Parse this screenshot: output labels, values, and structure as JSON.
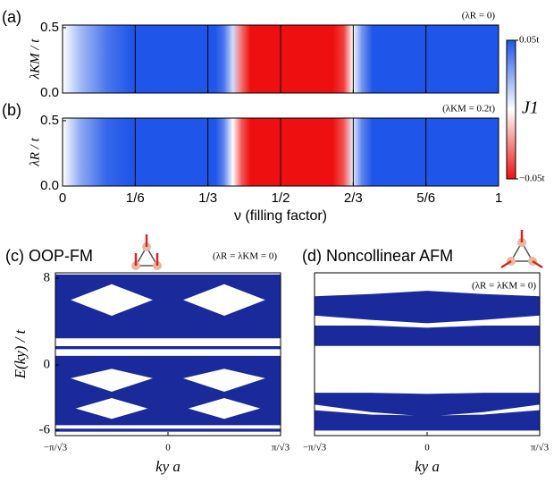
{
  "chart_data": [
    {
      "type": "heatmap",
      "panel": "(a)",
      "annotation": "(λR = 0)",
      "ylabel": "λKM / t",
      "x": [
        0,
        0.04,
        0.1,
        0.16,
        0.3,
        0.35,
        0.37,
        0.39,
        0.41,
        0.43,
        0.5,
        0.62,
        0.645,
        0.665,
        0.685,
        0.71,
        0.8,
        1
      ],
      "values": [
        0,
        0.02,
        0.04,
        0.05,
        0.05,
        0.05,
        0.04,
        0.01,
        -0.03,
        -0.05,
        -0.05,
        -0.05,
        -0.04,
        0,
        0.03,
        0.05,
        0.05,
        0.05
      ],
      "xlim": [
        0,
        1
      ],
      "xticks": [
        0,
        {
          "value": 0.16667,
          "label": "1/6"
        },
        {
          "value": 0.33333,
          "label": "1/3"
        },
        {
          "value": 0.5,
          "label": "1/2"
        },
        {
          "value": 0.66667,
          "label": "2/3"
        },
        {
          "value": 0.83333,
          "label": "5/6"
        },
        1
      ],
      "ylim": [
        0,
        0.52
      ],
      "yticks": [
        {
          "value": 0,
          "label": "0.0"
        },
        0.5
      ],
      "grid": true
    },
    {
      "type": "heatmap",
      "panel": "(b)",
      "annotation": "(λKM = 0.2t)",
      "ylabel": "λR / t",
      "xlabel": "ν (filling factor)",
      "x": [
        0,
        0.04,
        0.1,
        0.16,
        0.3,
        0.35,
        0.37,
        0.39,
        0.41,
        0.43,
        0.5,
        0.62,
        0.645,
        0.665,
        0.685,
        0.71,
        0.8,
        1
      ],
      "values": [
        0,
        0.025,
        0.045,
        0.05,
        0.05,
        0.05,
        0.035,
        0,
        -0.035,
        -0.05,
        -0.05,
        -0.05,
        -0.035,
        0.005,
        0.035,
        0.05,
        0.05,
        0.05
      ],
      "xlim": [
        0,
        1
      ],
      "xticks": [
        0,
        {
          "value": 0.16667,
          "label": "1/6"
        },
        {
          "value": 0.33333,
          "label": "1/3"
        },
        {
          "value": 0.5,
          "label": "1/2"
        },
        {
          "value": 0.66667,
          "label": "2/3"
        },
        {
          "value": 0.83333,
          "label": "5/6"
        },
        1
      ],
      "ylim": [
        0,
        0.52
      ],
      "yticks": [
        {
          "value": 0,
          "label": "0.0"
        },
        0.5
      ],
      "grid": true,
      "colorbar": {
        "label": "J1",
        "lim": [
          -0.05,
          0.05
        ],
        "ticks": [
          {
            "value": 0.05,
            "label": "0.05t"
          },
          {
            "value": -0.05,
            "label": "−0.05t"
          }
        ],
        "colors": [
          "#ee1010",
          "#ffffff",
          "#1f55e8"
        ]
      }
    },
    {
      "type": "band",
      "title": "(c) OOP-FM",
      "annotation": "(λR = λKM = 0)",
      "ylabel": "E(ky) / t",
      "xlabel": "ky a",
      "color": "#1a2a9a",
      "x": [
        -1.8138,
        -0.9069,
        0,
        0.9069,
        1.8138
      ],
      "series": [
        {
          "lower": [
            5.5,
            7.5,
            5.5,
            7.5,
            5.5
          ],
          "upper": [
            8.3,
            8.3,
            8.3,
            8.3,
            8.3
          ]
        },
        {
          "lower": [
            2.5,
            2.5,
            2.5,
            2.5,
            2.5
          ],
          "upper": [
            6.5,
            4.5,
            6.5,
            4.5,
            6.5
          ]
        },
        {
          "lower": [
            1.5,
            1.5,
            1.5,
            1.5,
            1.5
          ],
          "upper": [
            1.7,
            1.7,
            1.7,
            1.7,
            1.7
          ]
        },
        {
          "lower": [
            -1.5,
            -0.3,
            -1.5,
            -0.3,
            -1.5
          ],
          "upper": [
            0.8,
            0.8,
            0.8,
            0.8,
            0.8
          ]
        },
        {
          "lower": [
            -4.5,
            -3,
            -4.5,
            -3,
            -4.5
          ],
          "upper": [
            -0.8,
            -2.5,
            -0.8,
            -2.5,
            -0.8
          ]
        },
        {
          "lower": [
            -5.5,
            -5.5,
            -5.5,
            -5.5,
            -5.5
          ],
          "upper": [
            -3.5,
            -5,
            -3.5,
            -5,
            -3.5
          ]
        },
        {
          "lower": [
            -6.1,
            -6.1,
            -6.1,
            -6.1,
            -6.1
          ],
          "upper": [
            -5.9,
            -5.9,
            -5.9,
            -5.9,
            -5.9
          ]
        }
      ],
      "xlim": [
        -1.8138,
        1.8138
      ],
      "xticks": [
        {
          "value": -1.8138,
          "label": "−π/√3"
        },
        0,
        {
          "value": 1.8138,
          "label": "π/√3"
        }
      ],
      "ylim": [
        -6.5,
        8.5
      ],
      "yticks": [
        -6,
        0,
        8
      ]
    },
    {
      "type": "band",
      "title": "(d) Noncollinear AFM",
      "annotation": "(λR = λKM = 0)",
      "xlabel": "ky a",
      "color": "#1a2a9a",
      "x": [
        -1.8138,
        -0.9069,
        0,
        0.9069,
        1.8138
      ],
      "series": [
        {
          "lower": [
            4.6,
            4.2,
            3.9,
            4.2,
            4.6
          ],
          "upper": [
            6.3,
            6.5,
            6.8,
            6.5,
            6.3
          ]
        },
        {
          "lower": [
            1.8,
            1.8,
            1.8,
            1.8,
            1.8
          ],
          "upper": [
            3.6,
            3.6,
            3.4,
            3.6,
            3.6
          ]
        },
        {
          "lower": [
            -3.6,
            -4.3,
            -4.7,
            -4.3,
            -3.6
          ],
          "upper": [
            -2.6,
            -2.6,
            -2.7,
            -2.6,
            -2.6
          ]
        },
        {
          "lower": [
            -6,
            -6,
            -6,
            -6,
            -6
          ],
          "upper": [
            -4.2,
            -4.6,
            -4.7,
            -4.6,
            -4.2
          ]
        }
      ],
      "xlim": [
        -1.8138,
        1.8138
      ],
      "xticks": [
        {
          "value": -1.8138,
          "label": "−π/√3"
        },
        0,
        {
          "value": 1.8138,
          "label": "π/√3"
        }
      ],
      "ylim": [
        -6.5,
        8.5
      ],
      "yticks": []
    }
  ]
}
